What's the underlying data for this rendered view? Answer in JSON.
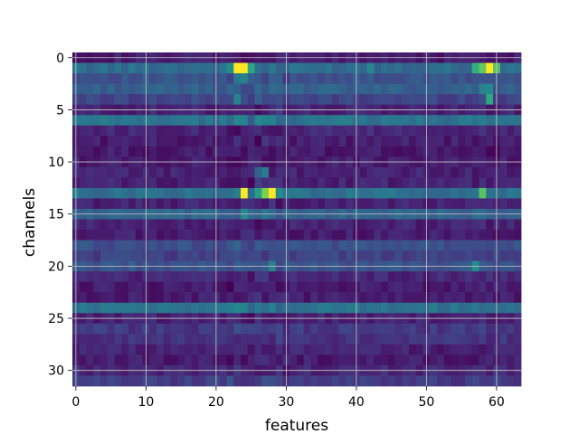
{
  "chart_data": {
    "type": "heatmap",
    "title": "",
    "xlabel": "features",
    "ylabel": "channels",
    "x_range": [
      0,
      63
    ],
    "y_range": [
      0,
      31
    ],
    "xticks": [
      0,
      10,
      20,
      30,
      40,
      50,
      60
    ],
    "yticks": [
      0,
      5,
      10,
      15,
      20,
      25,
      30
    ],
    "grid": true,
    "colormap": "viridis",
    "value_range": [
      0,
      1
    ],
    "rows": [
      {
        "channel": 0,
        "base": 0.1,
        "peaks": []
      },
      {
        "channel": 1,
        "base": 0.45,
        "peaks": [
          [
            23,
            1.0
          ],
          [
            24,
            1.0
          ],
          [
            22,
            0.62
          ],
          [
            25,
            0.7
          ],
          [
            28,
            0.5
          ],
          [
            59,
            1.0
          ],
          [
            58,
            0.82
          ],
          [
            57,
            0.72
          ],
          [
            60,
            0.8
          ],
          [
            42,
            0.58
          ]
        ]
      },
      {
        "channel": 2,
        "base": 0.32,
        "peaks": [
          [
            23,
            0.5
          ],
          [
            24,
            0.55
          ]
        ]
      },
      {
        "channel": 3,
        "base": 0.38,
        "peaks": [
          [
            58,
            0.55
          ],
          [
            59,
            0.6
          ]
        ]
      },
      {
        "channel": 4,
        "base": 0.26,
        "peaks": [
          [
            23,
            0.55
          ],
          [
            59,
            0.7
          ]
        ]
      },
      {
        "channel": 5,
        "base": 0.12,
        "peaks": []
      },
      {
        "channel": 6,
        "base": 0.48,
        "peaks": [
          [
            23,
            0.58
          ],
          [
            24,
            0.55
          ]
        ]
      },
      {
        "channel": 7,
        "base": 0.14,
        "peaks": []
      },
      {
        "channel": 8,
        "base": 0.1,
        "peaks": []
      },
      {
        "channel": 9,
        "base": 0.09,
        "peaks": [
          [
            59,
            0.02
          ],
          [
            60,
            0.02
          ]
        ]
      },
      {
        "channel": 10,
        "base": 0.1,
        "peaks": []
      },
      {
        "channel": 11,
        "base": 0.12,
        "peaks": [
          [
            27,
            0.52
          ],
          [
            26,
            0.4
          ]
        ]
      },
      {
        "channel": 12,
        "base": 0.12,
        "peaks": []
      },
      {
        "channel": 13,
        "base": 0.46,
        "peaks": [
          [
            24,
            1.0
          ],
          [
            27,
            0.85
          ],
          [
            28,
            1.0
          ],
          [
            29,
            0.6
          ],
          [
            58,
            0.8
          ],
          [
            26,
            0.66
          ]
        ]
      },
      {
        "channel": 14,
        "base": 0.12,
        "peaks": []
      },
      {
        "channel": 15,
        "base": 0.4,
        "peaks": [
          [
            24,
            0.6
          ],
          [
            27,
            0.5
          ]
        ]
      },
      {
        "channel": 16,
        "base": 0.12,
        "peaks": []
      },
      {
        "channel": 17,
        "base": 0.1,
        "peaks": []
      },
      {
        "channel": 18,
        "base": 0.3,
        "peaks": []
      },
      {
        "channel": 19,
        "base": 0.24,
        "peaks": []
      },
      {
        "channel": 20,
        "base": 0.32,
        "peaks": [
          [
            28,
            0.55
          ],
          [
            57,
            0.62
          ]
        ]
      },
      {
        "channel": 21,
        "base": 0.14,
        "peaks": []
      },
      {
        "channel": 22,
        "base": 0.1,
        "peaks": []
      },
      {
        "channel": 23,
        "base": 0.1,
        "peaks": []
      },
      {
        "channel": 24,
        "base": 0.48,
        "peaks": [
          [
            23,
            0.58
          ],
          [
            24,
            0.55
          ]
        ]
      },
      {
        "channel": 25,
        "base": 0.12,
        "peaks": []
      },
      {
        "channel": 26,
        "base": 0.2,
        "peaks": []
      },
      {
        "channel": 27,
        "base": 0.18,
        "peaks": []
      },
      {
        "channel": 28,
        "base": 0.12,
        "peaks": []
      },
      {
        "channel": 29,
        "base": 0.1,
        "peaks": []
      },
      {
        "channel": 30,
        "base": 0.14,
        "peaks": []
      },
      {
        "channel": 31,
        "base": 0.22,
        "peaks": []
      }
    ]
  }
}
